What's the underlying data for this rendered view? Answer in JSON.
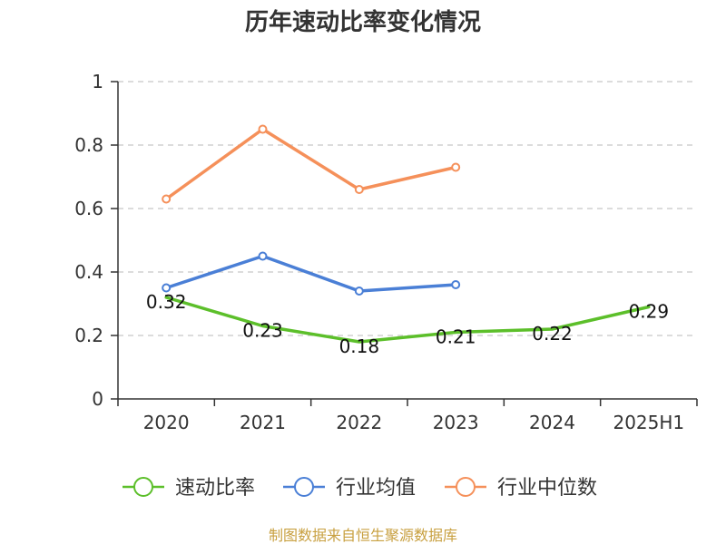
{
  "chart_data": {
    "type": "line",
    "title": "历年速动比率变化情况",
    "categories": [
      "2020",
      "2021",
      "2022",
      "2023",
      "2024",
      "2025H1"
    ],
    "ylim": [
      0,
      1
    ],
    "yticks": [
      "0",
      "0.2",
      "0.4",
      "0.6",
      "0.8",
      "1"
    ],
    "grid": true,
    "legend_position": "bottom",
    "series": [
      {
        "name": "速动比率",
        "color": "#5cbf2a",
        "values": [
          0.32,
          0.23,
          0.18,
          0.21,
          0.22,
          0.29
        ],
        "labels": [
          "0.32",
          "0.23",
          "0.18",
          "0.21",
          "0.22",
          "0.29"
        ],
        "markers": false
      },
      {
        "name": "行业均值",
        "color": "#4a7fd6",
        "values": [
          0.35,
          0.45,
          0.34,
          0.36,
          null,
          null
        ],
        "markers": true
      },
      {
        "name": "行业中位数",
        "color": "#f5905a",
        "values": [
          0.63,
          0.85,
          0.66,
          0.73,
          null,
          null
        ],
        "markers": true
      }
    ],
    "source": "制图数据来自恒生聚源数据库"
  }
}
